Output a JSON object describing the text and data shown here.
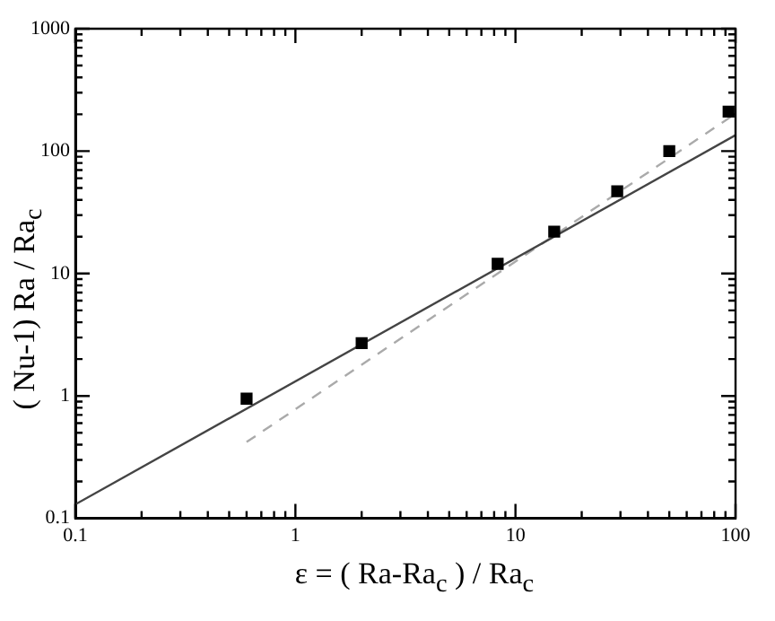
{
  "chart_data": {
    "type": "scatter",
    "xlabel": "ε = ( Ra-Ra$_{c}$ ) / Ra$_{c}$",
    "ylabel": "( Nu-1) Ra / Ra$_{c}$",
    "log": "xy",
    "grid": false,
    "xlim": [
      0.1,
      100
    ],
    "ylim": [
      0.1,
      1000
    ],
    "xticks": [
      0.1,
      {
        "value": 0.2,
        "label": null
      },
      {
        "value": 0.3,
        "label": null
      },
      {
        "value": 0.4,
        "label": null
      },
      {
        "value": 0.5,
        "label": null
      },
      {
        "value": 0.6,
        "label": null
      },
      {
        "value": 0.7,
        "label": null
      },
      {
        "value": 0.8,
        "label": null
      },
      {
        "value": 0.9,
        "label": null
      },
      1,
      {
        "value": 2,
        "label": null
      },
      {
        "value": 3,
        "label": null
      },
      {
        "value": 4,
        "label": null
      },
      {
        "value": 5,
        "label": null
      },
      {
        "value": 6,
        "label": null
      },
      {
        "value": 7,
        "label": null
      },
      {
        "value": 8,
        "label": null
      },
      {
        "value": 9,
        "label": null
      },
      10,
      {
        "value": 20,
        "label": null
      },
      {
        "value": 30,
        "label": null
      },
      {
        "value": 40,
        "label": null
      },
      {
        "value": 50,
        "label": null
      },
      {
        "value": 60,
        "label": null
      },
      {
        "value": 70,
        "label": null
      },
      {
        "value": 80,
        "label": null
      },
      {
        "value": 90,
        "label": null
      },
      100
    ],
    "yticks": [
      0.1,
      {
        "value": 0.2,
        "label": null
      },
      {
        "value": 0.3,
        "label": null
      },
      {
        "value": 0.4,
        "label": null
      },
      {
        "value": 0.5,
        "label": null
      },
      {
        "value": 0.6,
        "label": null
      },
      {
        "value": 0.7,
        "label": null
      },
      {
        "value": 0.8,
        "label": null
      },
      {
        "value": 0.9,
        "label": null
      },
      1,
      {
        "value": 2,
        "label": null
      },
      {
        "value": 3,
        "label": null
      },
      {
        "value": 4,
        "label": null
      },
      {
        "value": 5,
        "label": null
      },
      {
        "value": 6,
        "label": null
      },
      {
        "value": 7,
        "label": null
      },
      {
        "value": 8,
        "label": null
      },
      {
        "value": 9,
        "label": null
      },
      10,
      {
        "value": 20,
        "label": null
      },
      {
        "value": 30,
        "label": null
      },
      {
        "value": 40,
        "label": null
      },
      {
        "value": 50,
        "label": null
      },
      {
        "value": 60,
        "label": null
      },
      {
        "value": 70,
        "label": null
      },
      {
        "value": 80,
        "label": null
      },
      {
        "value": 90,
        "label": null
      },
      100,
      {
        "value": 200,
        "label": null
      },
      {
        "value": 300,
        "label": null
      },
      {
        "value": 400,
        "label": null
      },
      {
        "value": 500,
        "label": null
      },
      {
        "value": 600,
        "label": null
      },
      {
        "value": 700,
        "label": null
      },
      {
        "value": 800,
        "label": null
      },
      {
        "value": 900,
        "label": null
      },
      1000
    ],
    "series": [
      {
        "marker": "square",
        "color": "#000000",
        "x": [
          0.6,
          2,
          8.3,
          15,
          29,
          50,
          93
        ],
        "values": [
          0.95,
          2.7,
          12,
          22,
          47,
          100,
          210
        ]
      },
      {
        "type": "line",
        "marker": "none",
        "line_style": "solid",
        "color": "#444444",
        "x": [
          0.1,
          100
        ],
        "values": [
          0.13,
          135
        ]
      },
      {
        "type": "line",
        "marker": "none",
        "line_style": "dashed",
        "color": "#aaaaaa",
        "x": [
          0.6,
          95
        ],
        "values": [
          0.42,
          190
        ]
      }
    ]
  }
}
